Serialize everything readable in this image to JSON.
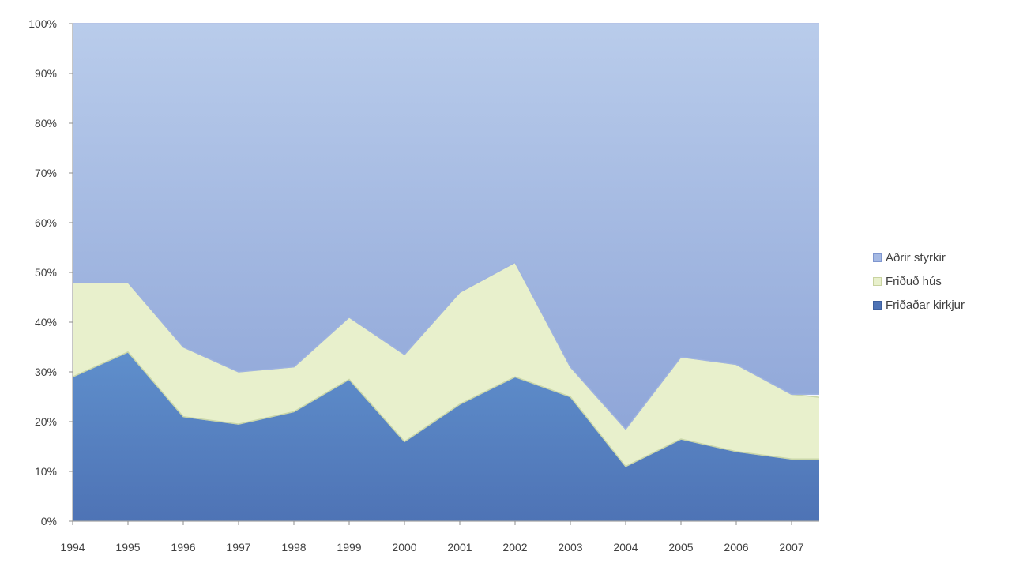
{
  "chart_data": {
    "type": "area",
    "stacked": "percent",
    "title": "",
    "xlabel": "",
    "ylabel": "",
    "ylim": [
      0,
      100
    ],
    "y_ticks": [
      "0%",
      "10%",
      "20%",
      "30%",
      "40%",
      "50%",
      "60%",
      "70%",
      "80%",
      "90%",
      "100%"
    ],
    "categories": [
      "1994",
      "1995",
      "1996",
      "1997",
      "1998",
      "1999",
      "2000",
      "2001",
      "2002",
      "2003",
      "2004",
      "2005",
      "2006",
      "2007"
    ],
    "legend_position": "right",
    "series": [
      {
        "name": "Friðaðar kirkjur",
        "color": "#5b86c4",
        "values": [
          29,
          34,
          21,
          19.5,
          22,
          28.5,
          16,
          23.5,
          29,
          25,
          11,
          16.5,
          14,
          12.5
        ]
      },
      {
        "name": "Friðuð hús",
        "color": "#e8f0cc",
        "values": [
          19,
          14,
          14,
          10.5,
          9,
          12.5,
          17.5,
          22.5,
          23,
          6,
          7.5,
          16.5,
          17.5,
          13
        ]
      },
      {
        "name": "Aðrir styrkir",
        "color": "#a5b9e3",
        "values": [
          52,
          52,
          65,
          70,
          69,
          59,
          66.5,
          54,
          48,
          69,
          81.5,
          67,
          68.5,
          74.5
        ]
      }
    ]
  }
}
